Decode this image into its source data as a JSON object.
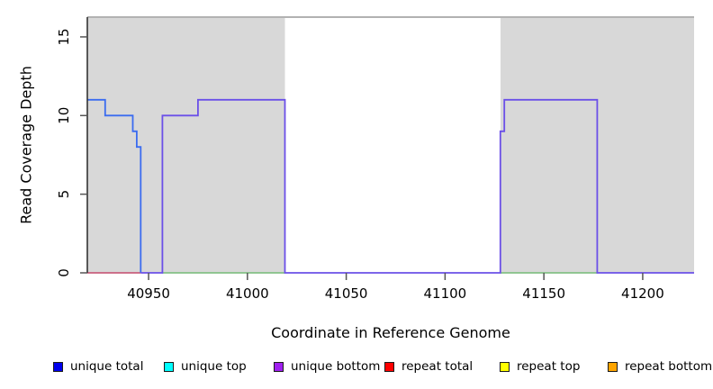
{
  "chart_data": {
    "type": "line",
    "title": "",
    "xlabel": "Coordinate in Reference Genome",
    "ylabel": "Read Coverage Depth",
    "xlim": [
      40919,
      41226
    ],
    "ylim": [
      0,
      16.2
    ],
    "xticks": [
      40950,
      41000,
      41050,
      41100,
      41150,
      41200
    ],
    "yticks": [
      0,
      5,
      10,
      15
    ],
    "grid": false,
    "legend_position": "bottom",
    "colors": {
      "covered_region_shade": "#d8d8d8",
      "gap_fill": "#ffffff",
      "plot_border": "#999999",
      "axis_line": "#333333",
      "tick_mark": "#555555",
      "tick_label": "#000000"
    },
    "covered_regions": [
      [
        40919,
        41019
      ],
      [
        41128,
        41226
      ]
    ],
    "uncovered_gaps": [
      [
        41019,
        41128
      ]
    ],
    "series": [
      {
        "name": "repeat-total-baseline",
        "color": "#c95f7d",
        "points": [
          [
            40919,
            0
          ],
          [
            40946,
            0
          ]
        ]
      },
      {
        "name": "overlap-baseline-left",
        "color": "#84c086",
        "points": [
          [
            40957,
            0
          ],
          [
            41019,
            0
          ]
        ]
      },
      {
        "name": "overlap-baseline-right",
        "color": "#84c086",
        "points": [
          [
            41128,
            0
          ],
          [
            41177,
            0
          ]
        ]
      },
      {
        "name": "unique-total",
        "color": "#3b6cf0",
        "points": [
          [
            40919,
            11
          ],
          [
            40928,
            11
          ],
          [
            40928,
            10
          ],
          [
            40942,
            10
          ],
          [
            40942,
            9
          ],
          [
            40944,
            9
          ],
          [
            40944,
            8
          ],
          [
            40946,
            8
          ],
          [
            40946,
            0
          ]
        ]
      },
      {
        "name": "unique-bottom",
        "color": "#6b50e8",
        "points": [
          [
            40946,
            0
          ],
          [
            40957,
            0
          ],
          [
            40957,
            10
          ],
          [
            40975,
            10
          ],
          [
            40975,
            11
          ],
          [
            41019,
            11
          ],
          [
            41019,
            0
          ],
          [
            41128,
            0
          ],
          [
            41128,
            9
          ],
          [
            41130,
            9
          ],
          [
            41130,
            11
          ],
          [
            41177,
            11
          ],
          [
            41177,
            0
          ],
          [
            41226,
            0
          ]
        ]
      }
    ],
    "legend": [
      {
        "label": "unique total",
        "color": "#0000ee"
      },
      {
        "label": "unique top",
        "color": "#00ffff"
      },
      {
        "label": "unique bottom",
        "color": "#a020f0"
      },
      {
        "label": "repeat total",
        "color": "#ff0000"
      },
      {
        "label": "repeat top",
        "color": "#ffff00"
      },
      {
        "label": "repeat bottom",
        "color": "#ffa500"
      }
    ]
  }
}
